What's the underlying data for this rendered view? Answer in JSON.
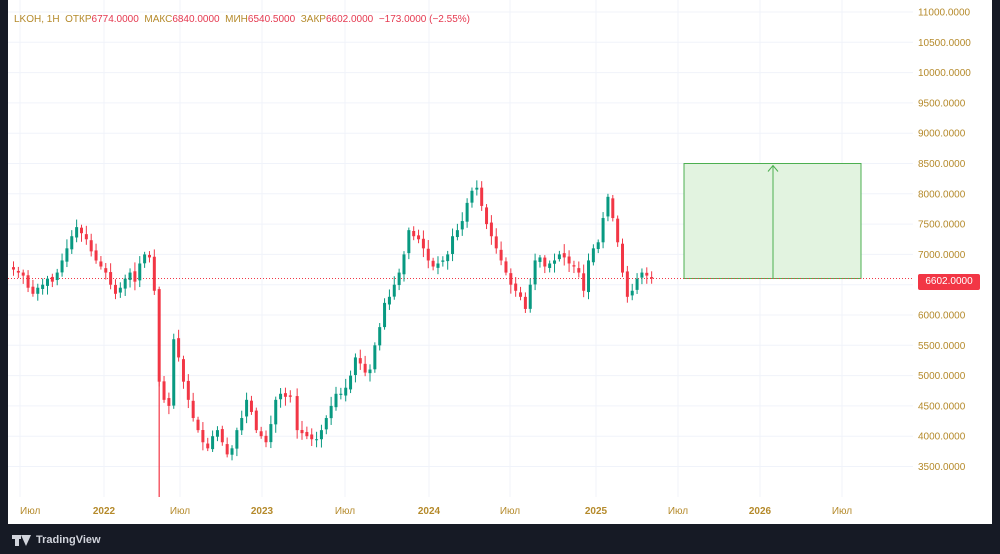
{
  "legend": {
    "symbol": "LKOH, 1H",
    "open_label": "ОТКР",
    "open_value": "6774.0000",
    "high_label": "МАКС",
    "high_value": "6840.0000",
    "low_label": "МИН",
    "low_value": "6540.5000",
    "close_label": "ЗАКР",
    "close_value": "6602.0000",
    "change": "−173.0000 (−2.55%)"
  },
  "current_price_label": "6602.0000",
  "brand": "TradingView",
  "colors": {
    "up": "#089981",
    "down": "#f23645",
    "grid": "#f0f3fa",
    "axis_text": "#b58a2b",
    "zone_fill": "#e2f3e0",
    "zone_stroke": "#4caf50",
    "price_line": "#f23645"
  },
  "chart_data": {
    "type": "candlestick",
    "y_axis_ticks": [
      "11000.0000",
      "10500.0000",
      "10000.0000",
      "9500.0000",
      "9000.0000",
      "8500.0000",
      "8000.0000",
      "7500.0000",
      "7000.0000",
      "6500.0000",
      "6000.0000",
      "5500.0000",
      "5000.0000",
      "4500.0000",
      "4000.0000",
      "3500.0000"
    ],
    "x_axis_ticks": [
      "Июл",
      "2022",
      "Июл",
      "2023",
      "Июл",
      "2024",
      "Июл",
      "2025",
      "Июл",
      "2026",
      "Июл"
    ],
    "ylim": [
      3050,
      11050
    ],
    "current_price": 6602,
    "projection_zone": {
      "from_price": 6602,
      "to_price": 8500
    },
    "series_close_approx": [
      6750,
      6700,
      6650,
      6450,
      6350,
      6450,
      6500,
      6600,
      6550,
      6700,
      6900,
      7100,
      7300,
      7450,
      7350,
      7250,
      7050,
      6900,
      6800,
      6700,
      6500,
      6350,
      6450,
      6600,
      6700,
      6550,
      6850,
      7000,
      6950,
      6400,
      4900,
      4600,
      4500,
      5600,
      5300,
      4900,
      4600,
      4300,
      4100,
      3900,
      3800,
      4000,
      4100,
      3900,
      3700,
      3800,
      4100,
      4300,
      4600,
      4400,
      4100,
      4000,
      3900,
      4200,
      4600,
      4700,
      4650,
      4650,
      4100,
      4050,
      4000,
      3950,
      3950,
      4100,
      4300,
      4500,
      4700,
      4700,
      4800,
      5000,
      5300,
      5200,
      5050,
      5100,
      5500,
      5800,
      6200,
      6300,
      6500,
      6700,
      7000,
      7400,
      7300,
      7250,
      7100,
      6900,
      6800,
      6850,
      6900,
      7000,
      7300,
      7400,
      7550,
      7850,
      8050,
      8100,
      7800,
      7500,
      7300,
      7100,
      6900,
      6700,
      6500,
      6400,
      6300,
      6100,
      6500,
      6900,
      6950,
      6800,
      6850,
      6900,
      7000,
      6950,
      6850,
      6800,
      6700,
      6400,
      6900,
      7100,
      7200,
      7600,
      7950,
      7600,
      7200,
      6700,
      6300,
      6400,
      6600,
      6700,
      6650,
      6602
    ]
  }
}
